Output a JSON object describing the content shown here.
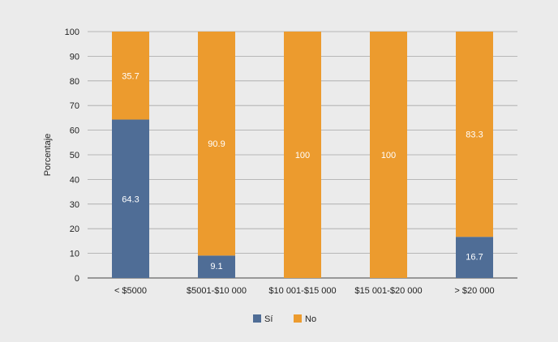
{
  "chart_data": {
    "type": "bar",
    "stacked": true,
    "categories": [
      "< $5000",
      "$5001-$10 000",
      "$10 001-$15 000",
      "$15 001-$20 000",
      "> $20 000"
    ],
    "series": [
      {
        "name": "Sí",
        "values": [
          64.3,
          9.1,
          0,
          0,
          16.7
        ],
        "color": "#4f6d96"
      },
      {
        "name": "No",
        "values": [
          35.7,
          90.9,
          100,
          100,
          83.3
        ],
        "color": "#ec9b2e"
      }
    ],
    "ylabel": "Porcentaje",
    "ylim": [
      0,
      100
    ],
    "yticks": [
      0,
      10,
      20,
      30,
      40,
      50,
      60,
      70,
      80,
      90,
      100
    ],
    "grid": true,
    "legend_position": "bottom"
  }
}
